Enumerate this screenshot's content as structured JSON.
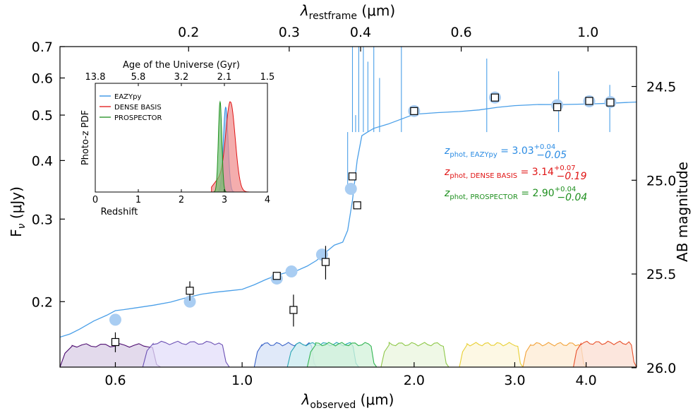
{
  "chart_data": {
    "type": "line",
    "axes": {
      "x_bottom": {
        "label": "λobserved (μm)",
        "label_parts": {
          "sym": "λ",
          "sub": "observed",
          "unit": " (μm)"
        },
        "scale": "log",
        "range": [
          0.48,
          4.9
        ],
        "ticks": [
          0.6,
          1.0,
          2.0,
          3.0,
          4.0
        ],
        "tick_labels": [
          "0.6",
          "1.0",
          "2.0",
          "3.0",
          "4.0"
        ]
      },
      "x_top": {
        "label": "λrestframe (μm)",
        "label_parts": {
          "sym": "λ",
          "sub": "restframe",
          "unit": " (μm)"
        },
        "ticks": [
          0.2,
          0.3,
          0.4,
          0.6,
          1.0
        ],
        "tick_labels": [
          "0.2",
          "0.3",
          "0.4",
          "0.6",
          "1.0"
        ]
      },
      "y_left": {
        "label": "Fν (μJy)",
        "label_parts": {
          "sym": "F",
          "sub": "ν",
          "unit": " (μJy)"
        },
        "scale": "log",
        "range": [
          0.145,
          0.7
        ],
        "ticks": [
          0.2,
          0.3,
          0.4,
          0.5,
          0.6,
          0.7
        ],
        "tick_labels": [
          "0.2",
          "0.3",
          "0.4",
          "0.5",
          "0.6",
          "0.7"
        ]
      },
      "y_right": {
        "label": "AB magnitude",
        "ticks": [
          24.5,
          25.0,
          25.5,
          26.0
        ],
        "tick_labels": [
          "24.5",
          "25.0",
          "25.5",
          "26.0"
        ]
      }
    },
    "model_color": "#4a9fe8",
    "model_sed": [
      [
        0.48,
        0.168
      ],
      [
        0.5,
        0.17
      ],
      [
        0.52,
        0.176
      ],
      [
        0.55,
        0.182
      ],
      [
        0.58,
        0.186
      ],
      [
        0.6,
        0.19
      ],
      [
        0.62,
        0.192
      ],
      [
        0.65,
        0.195
      ],
      [
        0.7,
        0.198
      ],
      [
        0.75,
        0.2
      ],
      [
        0.8,
        0.203
      ],
      [
        0.85,
        0.206
      ],
      [
        0.9,
        0.209
      ],
      [
        0.95,
        0.212
      ],
      [
        1.0,
        0.214
      ],
      [
        1.05,
        0.218
      ],
      [
        1.1,
        0.222
      ],
      [
        1.15,
        0.226
      ],
      [
        1.2,
        0.23
      ],
      [
        1.25,
        0.234
      ],
      [
        1.3,
        0.24
      ],
      [
        1.35,
        0.246
      ],
      [
        1.4,
        0.254
      ],
      [
        1.45,
        0.262
      ],
      [
        1.5,
        0.268
      ],
      [
        1.53,
        0.285
      ],
      [
        1.56,
        0.33
      ],
      [
        1.59,
        0.4
      ],
      [
        1.62,
        0.45
      ],
      [
        1.66,
        0.46
      ],
      [
        1.7,
        0.47
      ],
      [
        1.8,
        0.48
      ],
      [
        1.9,
        0.49
      ],
      [
        2.0,
        0.5
      ],
      [
        2.2,
        0.505
      ],
      [
        2.4,
        0.51
      ],
      [
        2.6,
        0.515
      ],
      [
        2.8,
        0.52
      ],
      [
        3.0,
        0.522
      ],
      [
        3.3,
        0.525
      ],
      [
        3.6,
        0.527
      ],
      [
        4.0,
        0.53
      ],
      [
        4.4,
        0.531
      ],
      [
        4.9,
        0.532
      ]
    ],
    "model_photometry": [
      {
        "x": 0.6,
        "y": 0.183
      },
      {
        "x": 0.81,
        "y": 0.2
      },
      {
        "x": 1.15,
        "y": 0.224
      },
      {
        "x": 1.22,
        "y": 0.232
      },
      {
        "x": 1.38,
        "y": 0.252
      },
      {
        "x": 1.55,
        "y": 0.348
      },
      {
        "x": 2.0,
        "y": 0.51
      },
      {
        "x": 2.77,
        "y": 0.545
      },
      {
        "x": 3.56,
        "y": 0.525
      },
      {
        "x": 4.05,
        "y": 0.535
      },
      {
        "x": 4.41,
        "y": 0.533
      }
    ],
    "observed_photometry": [
      {
        "x": 0.6,
        "y": 0.164,
        "err": 0.008
      },
      {
        "x": 0.81,
        "y": 0.211,
        "err": 0.01
      },
      {
        "x": 1.15,
        "y": 0.227,
        "err": 0.004
      },
      {
        "x": 1.23,
        "y": 0.192,
        "err": 0.015
      },
      {
        "x": 1.4,
        "y": 0.243,
        "err": 0.02
      },
      {
        "x": 1.56,
        "y": 0.37,
        "err": 0.006
      },
      {
        "x": 1.59,
        "y": 0.321,
        "err": 0.006
      },
      {
        "x": 2.0,
        "y": 0.51,
        "err": 0.006
      },
      {
        "x": 2.77,
        "y": 0.545,
        "err": 0.008
      },
      {
        "x": 3.56,
        "y": 0.52,
        "err": 0.006
      },
      {
        "x": 4.05,
        "y": 0.536,
        "err": 0.006
      },
      {
        "x": 4.41,
        "y": 0.532,
        "err": 0.006
      }
    ],
    "filters": [
      {
        "x0": 0.48,
        "x1": 0.72,
        "color": "#4b0a6e",
        "fill": "#d9cde6",
        "peak": 0.163
      },
      {
        "x0": 0.67,
        "x1": 0.95,
        "color": "#6a4fb3",
        "fill": "#e3defa",
        "peak": 0.165
      },
      {
        "x0": 1.05,
        "x1": 1.35,
        "color": "#3a63c8",
        "fill": "#d5e2f7",
        "peak": 0.164
      },
      {
        "x0": 1.2,
        "x1": 1.6,
        "color": "#2aa7b5",
        "fill": "#d3f0f0",
        "peak": 0.164
      },
      {
        "x0": 1.3,
        "x1": 1.72,
        "color": "#32b552",
        "fill": "#d2f1da",
        "peak": 0.164
      },
      {
        "x0": 1.75,
        "x1": 2.3,
        "color": "#8fc84a",
        "fill": "#eaf5dd",
        "peak": 0.164
      },
      {
        "x0": 2.4,
        "x1": 3.1,
        "color": "#e8cf32",
        "fill": "#fcf6db",
        "peak": 0.164
      },
      {
        "x0": 3.1,
        "x1": 4.0,
        "color": "#f2a33a",
        "fill": "#fdebd3",
        "peak": 0.164
      },
      {
        "x0": 3.8,
        "x1": 4.9,
        "color": "#e8502a",
        "fill": "#fbddd1",
        "peak": 0.165
      }
    ],
    "redshift_labels": [
      {
        "name": "EAZYpy",
        "text": "z",
        "sub": "phot, EAZYpy",
        "value": " = 3.03",
        "plus": "+0.04",
        "minus": "−0.05",
        "color": "#2a8be3"
      },
      {
        "name": "DENSE BASIS",
        "text": "z",
        "sub": "phot, DENSE BASIS",
        "value": " = 3.14",
        "plus": "+0.07",
        "minus": "−0.19",
        "color": "#e01515"
      },
      {
        "name": "PROSPECTOR",
        "text": "z",
        "sub": "phot, PROSPECTOR",
        "value": " = 2.90",
        "plus": "+0.04",
        "minus": "−0.04",
        "color": "#1e8f1e"
      }
    ],
    "inset": {
      "type": "area",
      "xlabel": "Redshift",
      "ylabel": "Photo-z PDF",
      "xlim": [
        0,
        4
      ],
      "x_ticks": [
        0,
        1,
        2,
        3,
        4
      ],
      "top_label": "Age of the Universe (Gyr)",
      "top_ticks": [
        {
          "label": "13.8",
          "z": 0.0
        },
        {
          "label": "5.8",
          "z": 1.0
        },
        {
          "label": "3.2",
          "z": 2.0
        },
        {
          "label": "2.1",
          "z": 3.0
        },
        {
          "label": "1.5",
          "z": 4.0
        }
      ],
      "legend": [
        "EAZYpy",
        "DENSE BASIS",
        "PROSPECTOR"
      ],
      "pdfs": [
        {
          "name": "EAZYpy",
          "color": "#2a8be3",
          "fill": "#8ab8e8",
          "mu": 3.03,
          "sigma": 0.055,
          "peak": 0.78
        },
        {
          "name": "DENSE BASIS",
          "color": "#e01515",
          "fill": "#f08a8a",
          "mu": 3.14,
          "sigma": 0.11,
          "peak": 0.83
        },
        {
          "name": "PROSPECTOR",
          "color": "#1e8f1e",
          "fill": "#6fbf6f",
          "mu": 2.9,
          "sigma": 0.04,
          "peak": 0.83
        }
      ]
    }
  }
}
